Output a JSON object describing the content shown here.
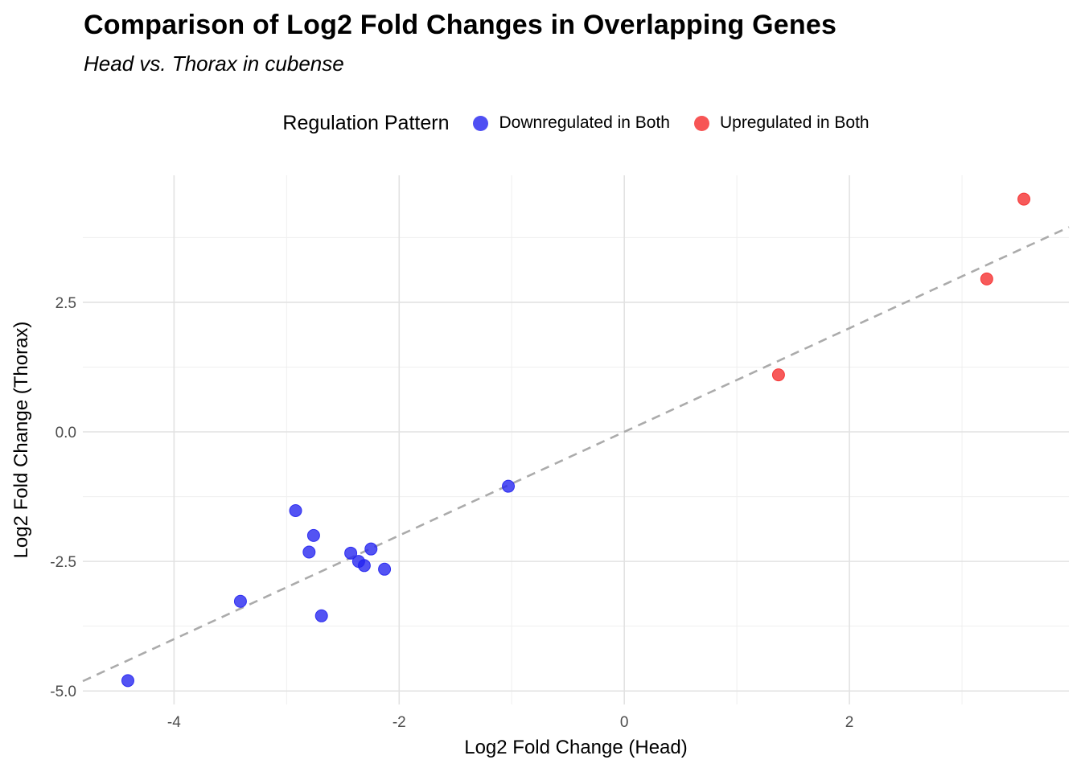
{
  "title": "Comparison of Log2 Fold Changes in Overlapping Genes",
  "subtitle": "Head vs. Thorax in cubense",
  "legend": {
    "title": "Regulation Pattern",
    "items": [
      {
        "label": "Downregulated in Both",
        "color": "#2323F0"
      },
      {
        "label": "Upregulated in Both",
        "color": "#F52B2B"
      }
    ]
  },
  "chart_data": {
    "type": "scatter",
    "title": "Comparison of Log2 Fold Changes in Overlapping Genes",
    "subtitle": "Head vs. Thorax in cubense",
    "xlabel": "Log2 Fold Change (Head)",
    "ylabel": "Log2 Fold Change (Thorax)",
    "xlim": [
      -4.81,
      3.95
    ],
    "ylim": [
      -5.26,
      4.95
    ],
    "x_ticks": {
      "values": [
        -4,
        -2,
        0,
        2
      ],
      "labels": [
        "-4",
        "-2",
        "0",
        "2"
      ]
    },
    "y_ticks": {
      "values": [
        -5.0,
        -2.5,
        0.0,
        2.5
      ],
      "labels": [
        "-5.0",
        "-2.5",
        "0.0",
        "2.5"
      ]
    },
    "x_minor": [
      -3,
      -1,
      1,
      3
    ],
    "y_minor": [
      -3.75,
      -1.25,
      1.25,
      3.75
    ],
    "grid": true,
    "legend_position": "top",
    "reference_line": {
      "slope": 1,
      "intercept": 0,
      "style": "dashed",
      "color": "#ababab"
    },
    "point_opacity": 0.78,
    "point_radius": 7.5,
    "series": [
      {
        "name": "Downregulated in Both",
        "color": "#2323F0",
        "points": [
          [
            -4.41,
            -4.8
          ],
          [
            -3.41,
            -3.27
          ],
          [
            -2.92,
            -1.52
          ],
          [
            -2.8,
            -2.32
          ],
          [
            -2.76,
            -2.0
          ],
          [
            -2.69,
            -3.55
          ],
          [
            -2.43,
            -2.34
          ],
          [
            -2.36,
            -2.5
          ],
          [
            -2.31,
            -2.58
          ],
          [
            -2.25,
            -2.26
          ],
          [
            -2.13,
            -2.65
          ],
          [
            -1.03,
            -1.05
          ]
        ]
      },
      {
        "name": "Upregulated in Both",
        "color": "#F52B2B",
        "points": [
          [
            1.37,
            1.1
          ],
          [
            3.22,
            2.95
          ],
          [
            3.55,
            4.49
          ]
        ]
      }
    ]
  }
}
